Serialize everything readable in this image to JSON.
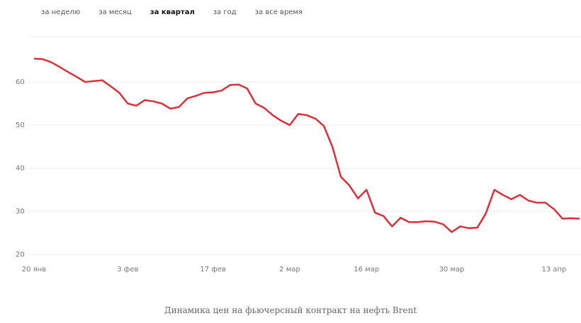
{
  "tabs": [
    {
      "label": "за неделю",
      "active": false
    },
    {
      "label": "за месяц",
      "active": false
    },
    {
      "label": "за квартал",
      "active": true
    },
    {
      "label": "за год",
      "active": false
    },
    {
      "label": "за все время",
      "active": false
    }
  ],
  "chart_data": {
    "type": "line",
    "categories": [
      "20 янв",
      null,
      null,
      null,
      null,
      null,
      null,
      null,
      null,
      null,
      null,
      "3 фев",
      null,
      null,
      null,
      null,
      null,
      null,
      null,
      null,
      null,
      "17 фев",
      null,
      null,
      null,
      null,
      null,
      null,
      null,
      null,
      "2 мар",
      null,
      null,
      null,
      null,
      null,
      null,
      null,
      null,
      "16 мар",
      null,
      null,
      null,
      null,
      null,
      null,
      null,
      null,
      null,
      "30 мар",
      null,
      null,
      null,
      null,
      null,
      null,
      null,
      null,
      null,
      null,
      null,
      "13 апр",
      null,
      null,
      null
    ],
    "series": [
      {
        "name": "Brent",
        "color": "#d9303b",
        "values": [
          65.4,
          65.3,
          64.6,
          63.5,
          62.3,
          61.2,
          60.0,
          60.2,
          60.4,
          59.0,
          57.5,
          55.0,
          54.5,
          55.8,
          55.5,
          55.0,
          53.8,
          54.2,
          56.2,
          56.8,
          57.5,
          57.6,
          58.0,
          59.3,
          59.4,
          58.5,
          55.0,
          54.0,
          52.3,
          51.0,
          50.0,
          52.6,
          52.3,
          51.5,
          49.8,
          45.0,
          38.0,
          36.0,
          33.0,
          35.0,
          29.7,
          28.9,
          26.5,
          28.5,
          27.5,
          27.5,
          27.7,
          27.6,
          27.0,
          25.2,
          26.5,
          26.1,
          26.2,
          29.5,
          35.0,
          33.8,
          32.8,
          33.8,
          32.5,
          32.0,
          32.0,
          30.5,
          28.3,
          28.4,
          28.3
        ]
      }
    ],
    "ylim": [
      20,
      70
    ],
    "yticks": [
      20,
      30,
      40,
      50,
      60
    ],
    "grid": true
  },
  "caption": "Динамика цен на фьючерсный контракт на нефть Brent"
}
